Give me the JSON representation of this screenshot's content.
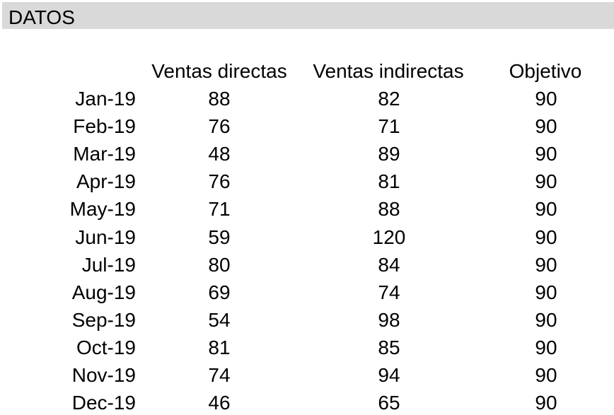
{
  "title": "DATOS",
  "table": {
    "headers": [
      "Ventas directas",
      "Ventas indirectas",
      "Objetivo"
    ],
    "rows": [
      {
        "month": "Jan-19",
        "direct": "88",
        "indirect": "82",
        "target": "90"
      },
      {
        "month": "Feb-19",
        "direct": "76",
        "indirect": "71",
        "target": "90"
      },
      {
        "month": "Mar-19",
        "direct": "48",
        "indirect": "89",
        "target": "90"
      },
      {
        "month": "Apr-19",
        "direct": "76",
        "indirect": "81",
        "target": "90"
      },
      {
        "month": "May-19",
        "direct": "71",
        "indirect": "88",
        "target": "90"
      },
      {
        "month": "Jun-19",
        "direct": "59",
        "indirect": "120",
        "target": "90"
      },
      {
        "month": "Jul-19",
        "direct": "80",
        "indirect": "84",
        "target": "90"
      },
      {
        "month": "Aug-19",
        "direct": "69",
        "indirect": "74",
        "target": "90"
      },
      {
        "month": "Sep-19",
        "direct": "54",
        "indirect": "98",
        "target": "90"
      },
      {
        "month": "Oct-19",
        "direct": "81",
        "indirect": "85",
        "target": "90"
      },
      {
        "month": "Nov-19",
        "direct": "74",
        "indirect": "94",
        "target": "90"
      },
      {
        "month": "Dec-19",
        "direct": "46",
        "indirect": "65",
        "target": "90"
      }
    ]
  }
}
